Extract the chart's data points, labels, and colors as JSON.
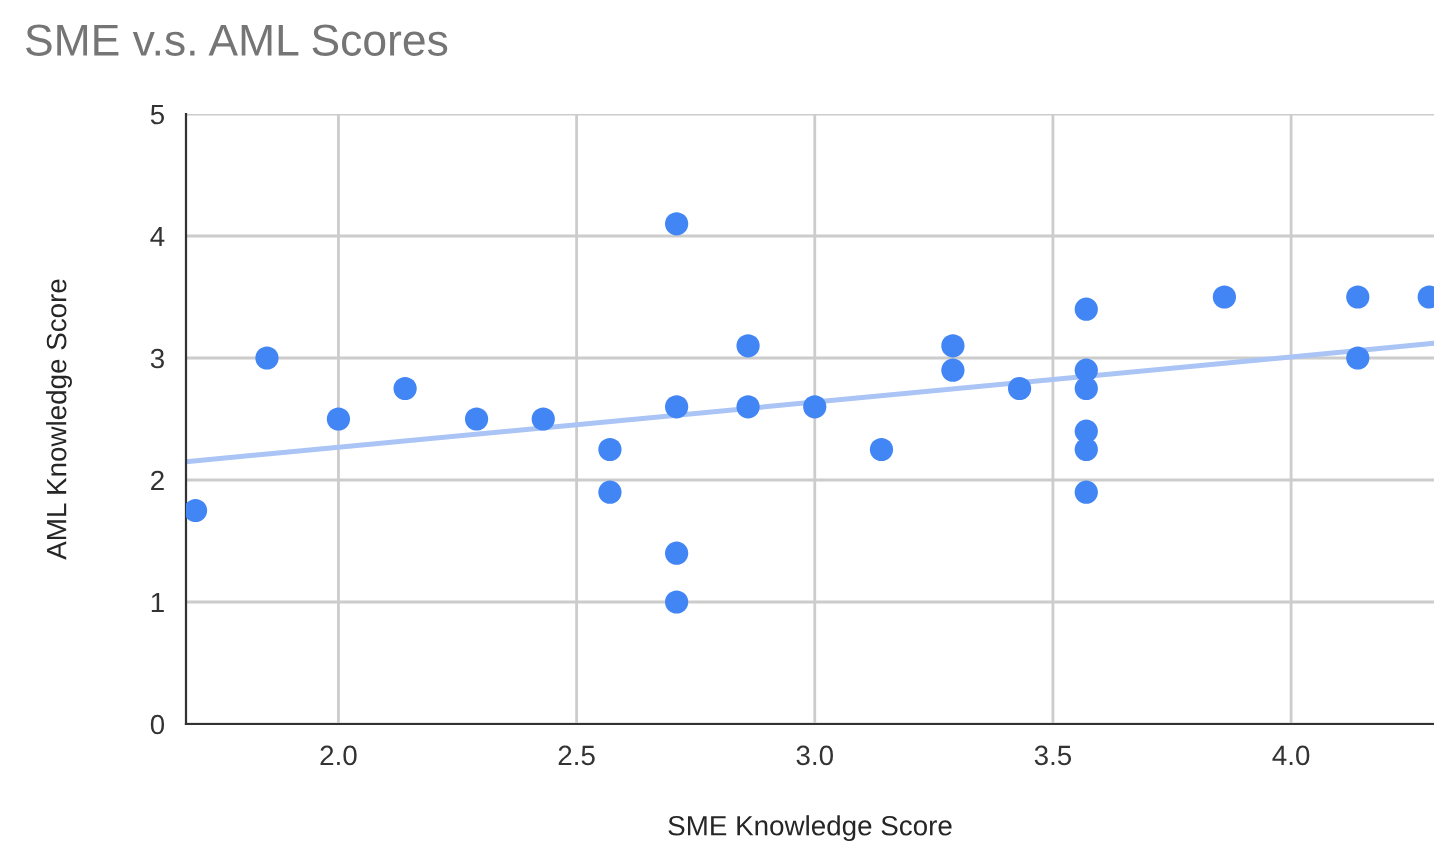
{
  "chart_data": {
    "type": "scatter",
    "title": "SME v.s. AML Scores",
    "xlabel": "SME Knowledge Score",
    "ylabel": "AML Knowledge Score",
    "series": [
      {
        "color": "#4285f4",
        "marker": "circle",
        "x": [
          1.7,
          1.85,
          2.0,
          2.14,
          2.29,
          2.43,
          2.57,
          2.57,
          2.71,
          2.71,
          2.71,
          2.71,
          2.86,
          2.86,
          3.0,
          3.14,
          3.29,
          3.29,
          3.43,
          3.57,
          3.57,
          3.57,
          3.57,
          3.57,
          3.57,
          3.86,
          4.14,
          4.14,
          4.29
        ],
        "values": [
          1.75,
          3.0,
          2.5,
          2.75,
          2.5,
          2.5,
          2.25,
          1.9,
          4.1,
          2.6,
          1.4,
          1.0,
          3.1,
          2.6,
          2.6,
          2.25,
          3.1,
          2.9,
          2.75,
          3.4,
          2.9,
          2.75,
          2.4,
          2.25,
          1.9,
          3.5,
          3.5,
          3.0,
          3.5
        ]
      },
      {
        "type": "line",
        "color": "#a9c4f5",
        "x": [
          1.68,
          4.3
        ],
        "values": [
          2.15,
          3.12
        ]
      }
    ],
    "xlim": [
      1.68,
      4.3
    ],
    "ylim": [
      0,
      5
    ],
    "xticks": [
      {
        "value": 2,
        "label": "2.0"
      },
      {
        "value": 2.5,
        "label": "2.5"
      },
      {
        "value": 3,
        "label": "3.0"
      },
      {
        "value": 3.5,
        "label": "3.5"
      },
      {
        "value": 4,
        "label": "4.0"
      }
    ],
    "yticks": [
      0,
      1,
      2,
      3,
      4,
      5
    ],
    "grid": true,
    "legend": false
  }
}
